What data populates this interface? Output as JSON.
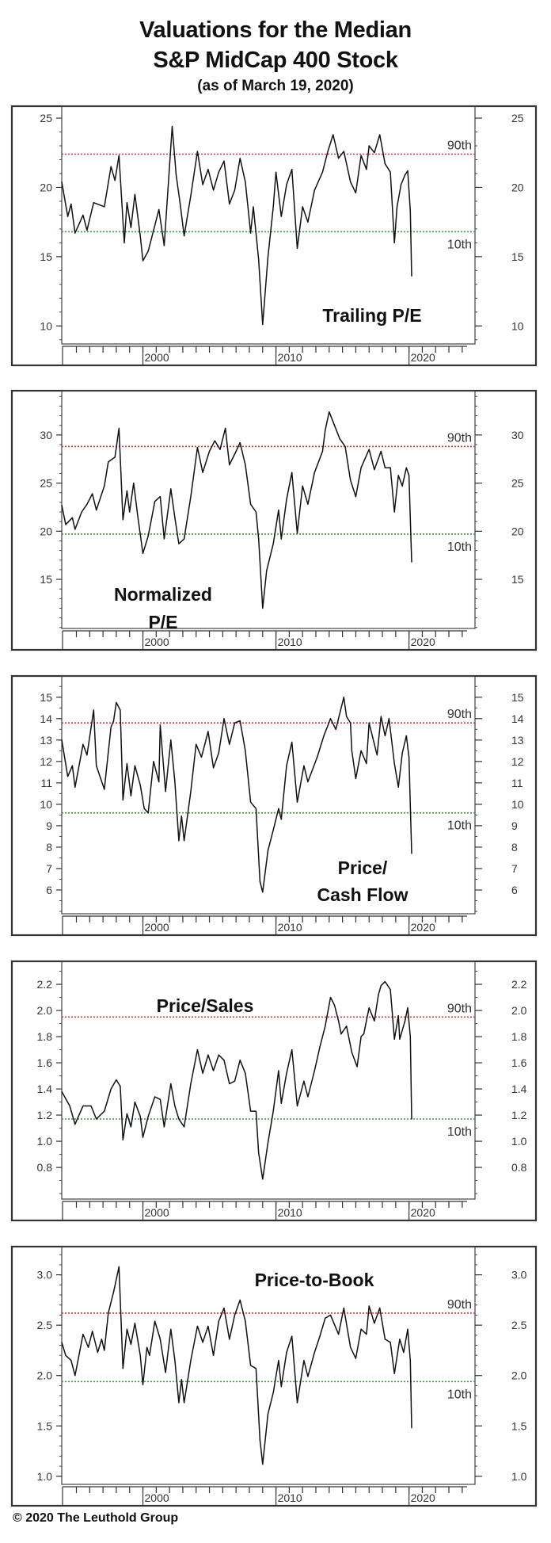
{
  "title": {
    "line1": "Valuations for the Median",
    "line2": "S&P MidCap 400 Stock",
    "subtitle": "(as of March 19, 2020)"
  },
  "footer": {
    "copyright": "© 2020 The Leuthold Group"
  },
  "colors": {
    "line": "#111111",
    "p90": "#d0393b",
    "p10": "#3a9a3a",
    "frame": "#333333"
  },
  "chart_data": [
    {
      "type": "line",
      "title": [
        "Trailing P/E"
      ],
      "ylim": [
        8.7,
        25.86
      ],
      "xlim": [
        1993.9,
        2024.96
      ],
      "yticks": [
        10,
        15,
        20,
        25
      ],
      "ytick_labels": [
        "10",
        "15",
        "20",
        "25"
      ],
      "minor_tick_step": 1,
      "xticks": [
        2000,
        2010,
        2020
      ],
      "xtick_labels": [
        "2000",
        "2010",
        "2020"
      ],
      "percentiles": [
        {
          "label": "90th",
          "value": 22.4
        },
        {
          "label": "10th",
          "value": 16.8
        }
      ],
      "x": [
        1993.9,
        1994.35,
        1994.6,
        1994.9,
        1995.5,
        1995.8,
        1996.3,
        1997.1,
        1997.6,
        1997.9,
        1998.2,
        1998.6,
        1998.8,
        1999.1,
        1999.4,
        1999.8,
        2000.0,
        2000.4,
        2000.8,
        2001.2,
        2001.6,
        2002.0,
        2002.2,
        2002.5,
        2002.8,
        2003.1,
        2003.6,
        2004.1,
        2004.5,
        2004.9,
        2005.3,
        2005.7,
        2006.1,
        2006.5,
        2006.9,
        2007.3,
        2007.7,
        2008.1,
        2008.3,
        2008.7,
        2009.0,
        2009.4,
        2009.8,
        2010.0,
        2010.4,
        2010.8,
        2011.2,
        2011.6,
        2012.0,
        2012.4,
        2012.9,
        2013.5,
        2013.9,
        2014.3,
        2014.7,
        2015.1,
        2015.6,
        2016.0,
        2016.4,
        2016.8,
        2017.0,
        2017.4,
        2017.8,
        2018.2,
        2018.6,
        2018.9,
        2019.1,
        2019.4,
        2019.7,
        2019.9,
        2020.1,
        2020.2
      ],
      "y": [
        20.4,
        17.9,
        18.8,
        16.7,
        18.0,
        16.9,
        18.9,
        18.6,
        21.5,
        20.5,
        22.3,
        16.0,
        18.9,
        17.1,
        19.5,
        16.5,
        14.7,
        15.4,
        16.9,
        18.4,
        15.8,
        21.5,
        24.4,
        20.9,
        18.8,
        16.5,
        19.4,
        22.6,
        20.2,
        21.3,
        19.8,
        21.1,
        21.9,
        18.8,
        19.8,
        22.1,
        20.4,
        16.7,
        18.6,
        14.8,
        10.1,
        15.0,
        18.6,
        21.1,
        17.9,
        20.2,
        21.3,
        15.6,
        18.6,
        17.5,
        19.8,
        21.1,
        22.6,
        23.8,
        22.1,
        22.6,
        20.4,
        19.6,
        22.3,
        21.3,
        23.0,
        22.5,
        23.8,
        21.7,
        21.1,
        16.0,
        18.6,
        20.2,
        20.9,
        21.2,
        18.3,
        13.6
      ]
    },
    {
      "type": "line",
      "title": [
        "Normalized",
        "P/E"
      ],
      "ylim": [
        9.9,
        34.6
      ],
      "xlim": [
        1993.9,
        2024.96
      ],
      "yticks": [
        15,
        20,
        25,
        30
      ],
      "ytick_labels": [
        "15",
        "20",
        "25",
        "30"
      ],
      "minor_tick_step": 1,
      "xticks": [
        2000,
        2010,
        2020
      ],
      "xtick_labels": [
        "2000",
        "2010",
        "2020"
      ],
      "percentiles": [
        {
          "label": "90th",
          "value": 28.8
        },
        {
          "label": "10th",
          "value": 19.7
        }
      ],
      "x": [
        1993.9,
        1994.2,
        1994.7,
        1994.9,
        1995.4,
        1995.8,
        1996.2,
        1996.5,
        1997.1,
        1997.4,
        1997.9,
        1998.2,
        1998.5,
        1998.8,
        1999.0,
        1999.3,
        1999.6,
        2000.0,
        2000.4,
        2000.9,
        2001.3,
        2001.6,
        2002.1,
        2002.4,
        2002.7,
        2003.1,
        2003.6,
        2004.1,
        2004.5,
        2005.0,
        2005.4,
        2005.8,
        2006.2,
        2006.5,
        2007.0,
        2007.3,
        2007.7,
        2008.1,
        2008.5,
        2008.7,
        2009.0,
        2009.3,
        2009.8,
        2010.2,
        2010.4,
        2010.8,
        2011.2,
        2011.6,
        2012.0,
        2012.4,
        2012.9,
        2013.5,
        2013.7,
        2014.0,
        2014.4,
        2014.8,
        2015.2,
        2015.6,
        2016.0,
        2016.4,
        2017.0,
        2017.4,
        2017.9,
        2018.2,
        2018.6,
        2018.9,
        2019.2,
        2019.5,
        2019.8,
        2020.0,
        2020.2
      ],
      "y": [
        22.7,
        20.7,
        21.4,
        20.2,
        22.0,
        22.8,
        23.9,
        22.2,
        24.7,
        27.2,
        27.7,
        30.7,
        21.2,
        24.2,
        22.0,
        25.0,
        21.7,
        17.7,
        19.5,
        23.1,
        23.6,
        19.2,
        24.4,
        21.4,
        18.7,
        19.2,
        23.6,
        28.7,
        26.1,
        28.3,
        29.4,
        28.5,
        30.7,
        26.9,
        28.3,
        29.2,
        26.9,
        22.8,
        22.0,
        19.2,
        12.0,
        15.9,
        18.7,
        22.2,
        19.2,
        23.3,
        26.1,
        19.8,
        24.7,
        22.8,
        26.1,
        28.3,
        30.5,
        32.4,
        31.0,
        29.6,
        28.8,
        25.3,
        23.6,
        26.6,
        28.5,
        26.4,
        28.3,
        26.6,
        26.6,
        22.0,
        25.8,
        24.7,
        26.6,
        25.8,
        16.8
      ]
    },
    {
      "type": "line",
      "title": [
        "Price/",
        "Cash Flow"
      ],
      "ylim": [
        4.89,
        15.99
      ],
      "xlim": [
        1993.9,
        2024.96
      ],
      "yticks": [
        6,
        7,
        8,
        9,
        10,
        11,
        12,
        13,
        14,
        15
      ],
      "ytick_labels": [
        "6",
        "7",
        "8",
        "9",
        "10",
        "11",
        "12",
        "13",
        "14",
        "15"
      ],
      "minor_tick_step": 0.5,
      "xticks": [
        2000,
        2010,
        2020
      ],
      "xtick_labels": [
        "2000",
        "2010",
        "2020"
      ],
      "percentiles": [
        {
          "label": "90th",
          "value": 13.8
        },
        {
          "label": "10th",
          "value": 9.6
        }
      ],
      "x": [
        1993.9,
        1994.35,
        1994.7,
        1994.9,
        1995.5,
        1995.8,
        1996.3,
        1996.5,
        1997.1,
        1997.6,
        1997.8,
        1998.0,
        1998.3,
        1998.5,
        1998.8,
        1999.1,
        1999.4,
        1999.8,
        2000.1,
        2000.4,
        2000.8,
        2001.2,
        2001.3,
        2001.7,
        2002.1,
        2002.4,
        2002.7,
        2002.9,
        2003.1,
        2003.6,
        2004.0,
        2004.4,
        2004.9,
        2005.3,
        2005.7,
        2006.1,
        2006.5,
        2006.9,
        2007.3,
        2007.7,
        2008.1,
        2008.5,
        2008.8,
        2009.0,
        2009.4,
        2009.8,
        2010.2,
        2010.4,
        2010.8,
        2011.2,
        2011.6,
        2012.1,
        2012.4,
        2013.1,
        2013.6,
        2014.1,
        2014.5,
        2015.1,
        2015.3,
        2015.6,
        2015.7,
        2016.0,
        2016.4,
        2016.8,
        2017.0,
        2017.6,
        2017.9,
        2018.2,
        2018.5,
        2018.9,
        2019.2,
        2019.5,
        2019.8,
        2020.0,
        2020.2
      ],
      "y": [
        13.0,
        11.3,
        11.8,
        10.8,
        12.8,
        12.3,
        14.4,
        11.8,
        10.7,
        13.6,
        13.9,
        14.75,
        14.4,
        10.2,
        11.9,
        10.4,
        11.8,
        10.9,
        9.8,
        9.6,
        12.0,
        11.05,
        13.7,
        10.6,
        13.0,
        11.05,
        8.3,
        9.45,
        8.3,
        10.6,
        12.8,
        12.2,
        13.4,
        11.7,
        12.4,
        14.0,
        12.8,
        13.8,
        13.9,
        12.5,
        10.1,
        9.8,
        6.4,
        5.9,
        7.85,
        8.8,
        9.8,
        9.3,
        11.8,
        12.9,
        10.1,
        11.8,
        11.05,
        12.2,
        13.2,
        14.0,
        13.5,
        15.0,
        14.1,
        13.8,
        12.5,
        11.2,
        12.5,
        11.9,
        13.8,
        12.3,
        14.1,
        13.2,
        14.0,
        11.9,
        10.8,
        12.4,
        13.2,
        12.2,
        7.7
      ]
    },
    {
      "type": "line",
      "title": [
        "Price/Sales"
      ],
      "ylim": [
        0.558,
        2.376
      ],
      "xlim": [
        1993.9,
        2024.96
      ],
      "yticks": [
        0.8,
        1.0,
        1.2,
        1.4,
        1.6,
        1.8,
        2.0,
        2.2
      ],
      "ytick_labels": [
        "0.8",
        "1.0",
        "1.2",
        "1.4",
        "1.6",
        "1.8",
        "2.0",
        "2.2"
      ],
      "minor_tick_step": 0.1,
      "xticks": [
        2000,
        2010,
        2020
      ],
      "xtick_labels": [
        "2000",
        "2010",
        "2020"
      ],
      "percentiles": [
        {
          "label": "90th",
          "value": 1.95
        },
        {
          "label": "10th",
          "value": 1.17
        }
      ],
      "x": [
        1993.9,
        1994.5,
        1994.9,
        1995.5,
        1996.1,
        1996.5,
        1997.1,
        1997.6,
        1998.0,
        1998.3,
        1998.5,
        1998.8,
        1999.1,
        1999.4,
        1999.8,
        2000.0,
        2000.4,
        2000.9,
        2001.3,
        2001.6,
        2002.1,
        2002.4,
        2002.7,
        2003.1,
        2003.6,
        2004.1,
        2004.5,
        2004.9,
        2005.3,
        2005.7,
        2006.1,
        2006.5,
        2006.9,
        2007.3,
        2007.7,
        2008.1,
        2008.5,
        2008.7,
        2009.0,
        2009.4,
        2009.8,
        2010.2,
        2010.4,
        2010.8,
        2011.2,
        2011.6,
        2012.1,
        2012.4,
        2012.9,
        2013.3,
        2013.7,
        2014.1,
        2014.4,
        2014.7,
        2014.9,
        2015.3,
        2015.7,
        2016.1,
        2016.4,
        2016.6,
        2017.0,
        2017.4,
        2017.7,
        2017.9,
        2018.2,
        2018.6,
        2018.9,
        2019.2,
        2019.3,
        2019.7,
        2019.9,
        2020.1,
        2020.2
      ],
      "y": [
        1.38,
        1.27,
        1.13,
        1.27,
        1.27,
        1.17,
        1.23,
        1.4,
        1.47,
        1.42,
        1.01,
        1.21,
        1.11,
        1.3,
        1.19,
        1.03,
        1.19,
        1.34,
        1.32,
        1.11,
        1.44,
        1.27,
        1.17,
        1.11,
        1.44,
        1.7,
        1.52,
        1.66,
        1.54,
        1.66,
        1.62,
        1.44,
        1.46,
        1.62,
        1.52,
        1.23,
        1.23,
        0.91,
        0.71,
        0.99,
        1.23,
        1.54,
        1.29,
        1.52,
        1.7,
        1.27,
        1.46,
        1.34,
        1.54,
        1.72,
        1.88,
        2.1,
        2.04,
        1.92,
        1.82,
        1.88,
        1.68,
        1.57,
        1.8,
        1.82,
        2.02,
        1.92,
        2.12,
        2.19,
        2.22,
        2.16,
        1.78,
        1.96,
        1.78,
        1.92,
        2.02,
        1.8,
        1.17
      ]
    },
    {
      "type": "line",
      "title": [
        "Price-to-Book"
      ],
      "ylim": [
        0.92,
        3.28
      ],
      "xlim": [
        1993.9,
        2024.96
      ],
      "yticks": [
        1.0,
        1.5,
        2.0,
        2.5,
        3.0
      ],
      "ytick_labels": [
        "1.0",
        "1.5",
        "2.0",
        "2.5",
        "3.0"
      ],
      "minor_tick_step": 0.1,
      "xticks": [
        2000,
        2010,
        2020
      ],
      "xtick_labels": [
        "2000",
        "2010",
        "2020"
      ],
      "percentiles": [
        {
          "label": "90th",
          "value": 2.62
        },
        {
          "label": "10th",
          "value": 1.94
        }
      ],
      "x": [
        1993.9,
        1994.2,
        1994.6,
        1994.9,
        1995.5,
        1995.9,
        1996.2,
        1996.6,
        1996.9,
        1997.1,
        1997.4,
        1997.8,
        1998.2,
        1998.5,
        1998.8,
        1999.1,
        1999.4,
        1999.8,
        2000.0,
        2000.3,
        2000.5,
        2000.9,
        2001.3,
        2001.7,
        2002.1,
        2002.4,
        2002.7,
        2002.9,
        2003.1,
        2003.6,
        2004.1,
        2004.5,
        2004.9,
        2005.3,
        2005.7,
        2006.1,
        2006.5,
        2006.9,
        2007.3,
        2007.7,
        2008.1,
        2008.5,
        2008.8,
        2009.0,
        2009.4,
        2009.8,
        2010.2,
        2010.4,
        2010.8,
        2011.2,
        2011.6,
        2012.1,
        2012.4,
        2012.9,
        2013.3,
        2013.7,
        2014.1,
        2014.7,
        2015.1,
        2015.6,
        2016.0,
        2016.4,
        2016.8,
        2017.0,
        2017.4,
        2017.8,
        2018.2,
        2018.6,
        2018.9,
        2019.3,
        2019.6,
        2019.9,
        2020.1,
        2020.2
      ],
      "y": [
        2.33,
        2.2,
        2.15,
        2.0,
        2.41,
        2.28,
        2.44,
        2.23,
        2.36,
        2.25,
        2.62,
        2.83,
        3.08,
        2.07,
        2.46,
        2.31,
        2.52,
        2.2,
        1.91,
        2.28,
        2.2,
        2.54,
        2.36,
        2.03,
        2.46,
        2.15,
        1.73,
        1.96,
        1.73,
        2.15,
        2.49,
        2.33,
        2.49,
        2.2,
        2.54,
        2.67,
        2.36,
        2.6,
        2.75,
        2.54,
        2.1,
        2.07,
        1.36,
        1.12,
        1.62,
        1.83,
        2.15,
        1.89,
        2.23,
        2.39,
        1.73,
        2.15,
        1.99,
        2.23,
        2.39,
        2.57,
        2.6,
        2.41,
        2.67,
        2.28,
        2.17,
        2.46,
        2.41,
        2.69,
        2.52,
        2.67,
        2.36,
        2.33,
        2.02,
        2.36,
        2.23,
        2.46,
        2.15,
        1.48
      ]
    }
  ]
}
